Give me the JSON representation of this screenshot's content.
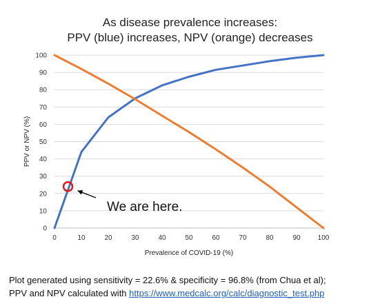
{
  "chart_data": {
    "type": "line",
    "title_lines": [
      "As disease prevalence increases:",
      "PPV (blue) increases, NPV (orange) decreases"
    ],
    "xlabel": "Prevalence of COVID-19 (%)",
    "ylabel": "PPV or NPV (%)",
    "xlim": [
      0,
      100
    ],
    "ylim": [
      0,
      100
    ],
    "x_ticks": [
      0,
      10,
      20,
      30,
      40,
      50,
      60,
      70,
      80,
      90,
      100
    ],
    "y_ticks": [
      0,
      10,
      20,
      30,
      40,
      50,
      60,
      70,
      80,
      90,
      100
    ],
    "grid": "horizontal",
    "legend": "none",
    "series": [
      {
        "color": "#4472c4",
        "x": [
          0,
          10,
          20,
          30,
          40,
          50,
          60,
          70,
          80,
          90,
          100
        ],
        "y": [
          0,
          44,
          64,
          75,
          82.5,
          87.5,
          91.5,
          94,
          96.5,
          98.5,
          100
        ]
      },
      {
        "color": "#ed7d31",
        "x": [
          0,
          10,
          20,
          30,
          40,
          50,
          60,
          70,
          80,
          90,
          100
        ],
        "y": [
          100,
          92,
          83.5,
          74.5,
          65,
          55.5,
          45.5,
          35,
          24,
          12,
          0
        ]
      }
    ],
    "annotation": {
      "text": "We are here.",
      "point_x": 5,
      "point_y": 24,
      "marker_color": "#e8121a"
    }
  },
  "footer": {
    "line1": "Plot generated using sensitivity = 22.6% & specificity = 96.8% (from Chua et al);",
    "line2_prefix": "PPV and NPV calculated with ",
    "link_text": "https://www.medcalc.org/calc/diagnostic_test.php"
  }
}
